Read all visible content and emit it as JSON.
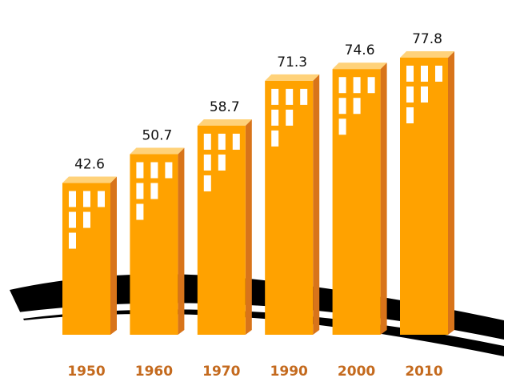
{
  "chart_data": {
    "type": "bar",
    "categories": [
      "1950",
      "1960",
      "1970",
      "1990",
      "2000",
      "2010"
    ],
    "values": [
      42.6,
      50.7,
      58.7,
      71.3,
      74.6,
      77.8
    ],
    "color": "#ffa200"
  }
}
